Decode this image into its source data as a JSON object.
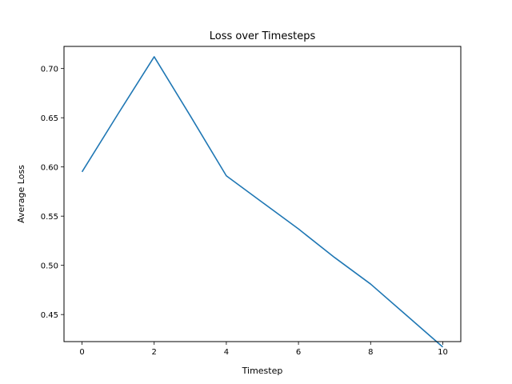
{
  "chart_data": {
    "type": "line",
    "title": "Loss over Timesteps",
    "xlabel": "Timestep",
    "ylabel": "Average Loss",
    "xlim": [
      -0.5,
      10.5
    ],
    "ylim": [
      0.4225,
      0.7225
    ],
    "x_ticks": [
      0,
      2,
      4,
      6,
      8,
      10
    ],
    "y_ticks": [
      0.45,
      0.5,
      0.55,
      0.6,
      0.65,
      0.7
    ],
    "y_tick_labels": [
      "0.45",
      "0.50",
      "0.55",
      "0.60",
      "0.65",
      "0.70"
    ],
    "grid": false,
    "series": [
      {
        "color": "#1f77b4",
        "x": [
          0,
          1,
          2,
          3,
          4,
          5,
          6,
          7,
          8,
          9,
          10
        ],
        "y": [
          0.595,
          0.654,
          0.712,
          0.652,
          0.591,
          0.564,
          0.537,
          0.508,
          0.481,
          0.449,
          0.417
        ]
      }
    ]
  }
}
